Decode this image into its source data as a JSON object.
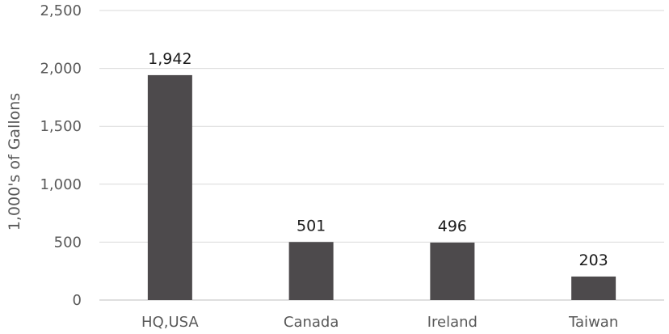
{
  "chart_data": {
    "type": "bar",
    "title": "",
    "xlabel": "",
    "ylabel": "1,000's of Gallons",
    "categories": [
      "HQ,USA",
      "Canada",
      "Ireland",
      "Taiwan"
    ],
    "values": [
      1942,
      501,
      496,
      203
    ],
    "data_labels": [
      "1,942",
      "501",
      "496",
      "203"
    ],
    "y_ticks": [
      0,
      500,
      1000,
      1500,
      2000,
      2500
    ],
    "y_tick_labels": [
      "0",
      "500",
      "1,000",
      "1,500",
      "2,000",
      "2,500"
    ],
    "ylim": [
      0,
      2500
    ],
    "grid": true,
    "bar_color": "#4d4a4c"
  }
}
